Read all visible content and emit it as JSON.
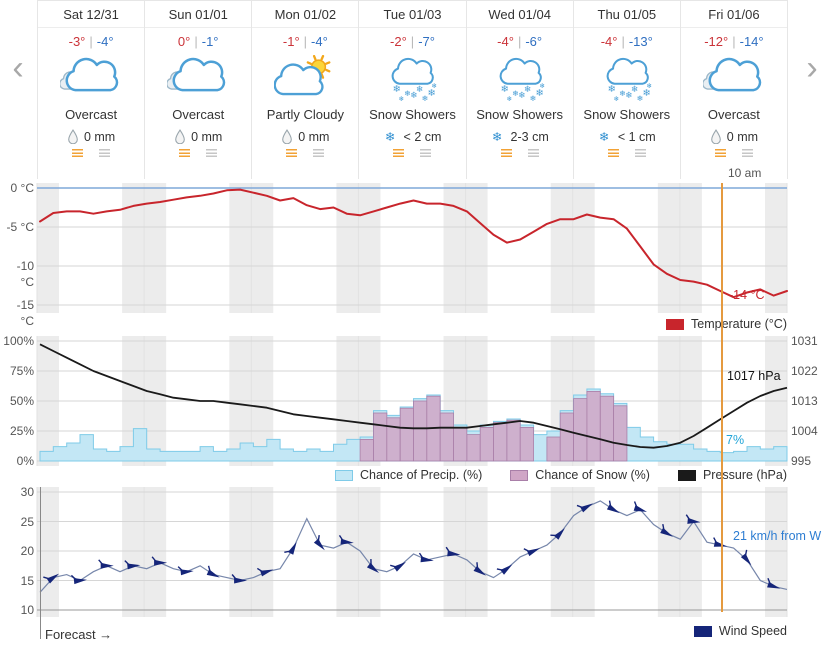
{
  "nav": {
    "prev_symbol": "‹",
    "next_symbol": "›"
  },
  "labels": {
    "temp_separator": "|"
  },
  "now_label": "10 am",
  "footer_label": "Forecast →",
  "days": [
    {
      "date": "Sat 12/31",
      "high": "-3°",
      "low": "-4°",
      "icon": "overcast",
      "desc": "Overcast",
      "precip": "0 mm",
      "precip_icon": "raindrop"
    },
    {
      "date": "Sun 01/01",
      "high": "0°",
      "low": "-1°",
      "icon": "overcast",
      "desc": "Overcast",
      "precip": "0 mm",
      "precip_icon": "raindrop"
    },
    {
      "date": "Mon 01/02",
      "high": "-1°",
      "low": "-4°",
      "icon": "partly-cloudy",
      "desc": "Partly Cloudy",
      "precip": "0 mm",
      "precip_icon": "raindrop"
    },
    {
      "date": "Tue 01/03",
      "high": "-2°",
      "low": "-7°",
      "icon": "snow-showers",
      "desc": "Snow Showers",
      "precip": "< 2 cm",
      "precip_icon": "snowflake"
    },
    {
      "date": "Wed 01/04",
      "high": "-4°",
      "low": "-6°",
      "icon": "snow-showers",
      "desc": "Snow Showers",
      "precip": "2-3 cm",
      "precip_icon": "snowflake"
    },
    {
      "date": "Thu 01/05",
      "high": "-4°",
      "low": "-13°",
      "icon": "snow-showers",
      "desc": "Snow Showers",
      "precip": "< 1 cm",
      "precip_icon": "snowflake"
    },
    {
      "date": "Fri 01/06",
      "high": "-12°",
      "low": "-14°",
      "icon": "overcast",
      "desc": "Overcast",
      "precip": "0 mm",
      "precip_icon": "raindrop"
    }
  ],
  "chart_data": [
    {
      "type": "line",
      "name": "temperature",
      "x_description": "7 days (Sat 12/31 - Fri 01/06), 3-hour steps",
      "ylim": [
        -16,
        1
      ],
      "line_color": "#c8252c",
      "yticks": [
        {
          "v": 0,
          "label": "0 °C"
        },
        {
          "v": -5,
          "label": "-5 °C"
        },
        {
          "v": -10,
          "label": "-10 °C"
        },
        {
          "v": -15,
          "label": "-15 °C"
        }
      ],
      "values": [
        -4.3,
        -3.2,
        -3,
        -3,
        -3.3,
        -3,
        -2.8,
        -2.3,
        -2,
        -1.8,
        -1.5,
        -1.2,
        -1,
        -0.7,
        -0.3,
        -0.2,
        -0.6,
        -1,
        -1.6,
        -1.3,
        -2.2,
        -2.7,
        -2.5,
        -3.3,
        -3.5,
        -3,
        -2.5,
        -2,
        -1.6,
        -2,
        -2,
        -2.3,
        -3,
        -4.5,
        -6,
        -7,
        -6.6,
        -5.6,
        -4.6,
        -4,
        -4,
        -3.4,
        -3.8,
        -4,
        -5.2,
        -7.5,
        -9.8,
        -11,
        -11.8,
        -12,
        -12.4,
        -13.2,
        -14,
        -13.4,
        -13,
        -13.8,
        -13.2
      ],
      "annotation": "-14 °C",
      "legend": [
        {
          "name": "temperature",
          "label": "Temperature (°C)",
          "color": "#c8252c"
        }
      ]
    },
    {
      "type": "composite",
      "name": "precipitation-pressure",
      "left_axis": {
        "ticks": [
          {
            "v": 100,
            "label": "100%"
          },
          {
            "v": 75,
            "label": "75%"
          },
          {
            "v": 50,
            "label": "50%"
          },
          {
            "v": 25,
            "label": "25%"
          },
          {
            "v": 0,
            "label": "0%"
          }
        ]
      },
      "right_axis": {
        "ticks": [
          {
            "v": 1031,
            "label": "1031"
          },
          {
            "v": 1022,
            "label": "1022"
          },
          {
            "v": 1013,
            "label": "1013"
          },
          {
            "v": 1004,
            "label": "1004"
          },
          {
            "v": 995,
            "label": "995"
          }
        ]
      },
      "series": [
        {
          "name": "precip-chance",
          "type": "area-step",
          "label": "Chance of Precip. (%)",
          "unit": "%",
          "color": "#c3e7f5",
          "border": "#7fcbe8",
          "annotation": "7%",
          "values": [
            8,
            12,
            15,
            22,
            10,
            8,
            12,
            27,
            10,
            8,
            8,
            8,
            12,
            8,
            10,
            15,
            12,
            18,
            10,
            8,
            10,
            8,
            14,
            18,
            20,
            42,
            38,
            45,
            52,
            55,
            42,
            30,
            25,
            30,
            33,
            35,
            30,
            22,
            25,
            42,
            55,
            60,
            56,
            48,
            28,
            20,
            16,
            14,
            14,
            10,
            8,
            7,
            8,
            12,
            10,
            12
          ]
        },
        {
          "name": "snow-chance",
          "type": "bar",
          "label": "Chance of Snow (%)",
          "unit": "%",
          "color": "#d0a6c6",
          "border": "#a97fa8",
          "values": [
            0,
            0,
            0,
            0,
            0,
            0,
            0,
            0,
            0,
            0,
            0,
            0,
            0,
            0,
            0,
            0,
            0,
            0,
            0,
            0,
            0,
            0,
            0,
            0,
            18,
            40,
            36,
            44,
            50,
            54,
            40,
            28,
            22,
            28,
            32,
            34,
            28,
            0,
            20,
            40,
            52,
            58,
            54,
            46,
            0,
            0,
            0,
            0,
            0,
            0,
            0,
            0,
            0,
            0,
            0,
            0
          ]
        },
        {
          "name": "pressure",
          "type": "line",
          "label": "Pressure (hPa)",
          "unit": "hPa",
          "color": "#1a1a1a",
          "ylim": [
            995,
            1031
          ],
          "annotation": "1017 hPa",
          "values": [
            1030,
            1028,
            1026,
            1024,
            1022,
            1020.5,
            1019,
            1017.5,
            1016,
            1015,
            1014,
            1013.5,
            1013,
            1013,
            1012.5,
            1012,
            1011.5,
            1011,
            1010,
            1009,
            1008.5,
            1008,
            1007.5,
            1007,
            1006.5,
            1006,
            1005.5,
            1005,
            1004.8,
            1004.8,
            1005,
            1005,
            1005,
            1005.5,
            1006,
            1006.5,
            1007,
            1006.5,
            1005.5,
            1004.5,
            1003.5,
            1002.5,
            1001.5,
            1000.5,
            999.8,
            999.2,
            999,
            999.5,
            1000.5,
            1002.5,
            1005,
            1007.5,
            1010,
            1012.5,
            1014.5,
            1016,
            1017
          ]
        }
      ],
      "legend": [
        {
          "name": "precip-chance",
          "label": "Chance of Precip. (%)",
          "color": "#c3e7f5",
          "border": "#7fcbe8"
        },
        {
          "name": "snow-chance",
          "label": "Chance of Snow (%)",
          "color": "#d0a6c6",
          "border": "#a97fa8"
        },
        {
          "name": "pressure",
          "label": "Pressure (hPa)",
          "color": "#1a1a1a"
        }
      ]
    },
    {
      "type": "line",
      "name": "wind",
      "unit": "km/h",
      "ylim": [
        8,
        31
      ],
      "line_color": "#7787ab",
      "barb_color": "#152579",
      "yticks": [
        {
          "v": 30,
          "label": "30"
        },
        {
          "v": 25,
          "label": "25"
        },
        {
          "v": 20,
          "label": "20"
        },
        {
          "v": 15,
          "label": "15"
        },
        {
          "v": 10,
          "label": "10"
        }
      ],
      "values": [
        13,
        15.5,
        16,
        15,
        16.5,
        17.5,
        16.5,
        17.5,
        17,
        18,
        17,
        16.5,
        17.5,
        16,
        15.5,
        15,
        15.5,
        16.5,
        17,
        20.5,
        25.5,
        21,
        20.5,
        21.5,
        20,
        17,
        16.5,
        17.5,
        19.5,
        18.5,
        19,
        19.5,
        18.5,
        16.5,
        15.5,
        17,
        19,
        20,
        21,
        23,
        26,
        27.5,
        28.5,
        27,
        26,
        27,
        24.5,
        23,
        22,
        25,
        21.5,
        21,
        20.5,
        18.5,
        15,
        14,
        13.5
      ],
      "annotation": "21 km/h from W",
      "legend": [
        {
          "name": "wind-speed",
          "label": "Wind Speed",
          "color": "#152579"
        }
      ]
    }
  ]
}
